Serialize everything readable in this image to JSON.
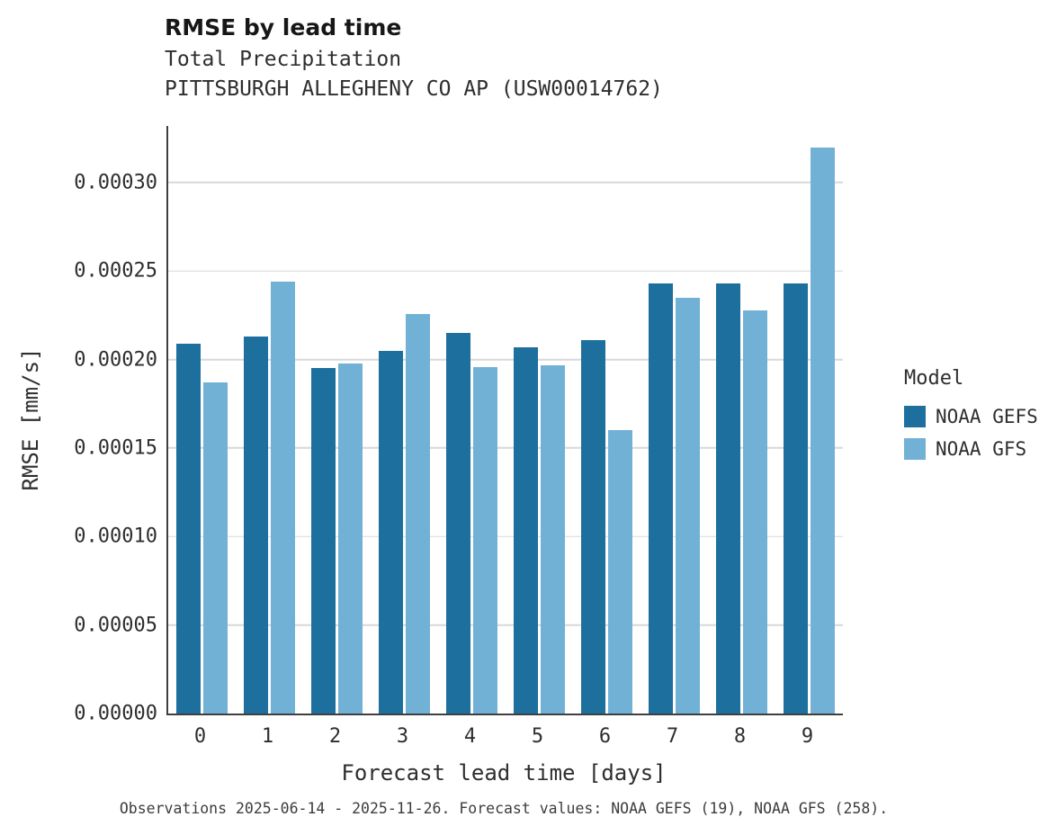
{
  "chart_data": {
    "type": "bar",
    "title": "RMSE by lead time",
    "subtitle": "Total Precipitation",
    "subtitle2": "PITTSBURGH ALLEGHENY CO AP (USW00014762)",
    "xlabel": "Forecast lead time [days]",
    "ylabel": "RMSE [mm/s]",
    "categories": [
      "0",
      "1",
      "2",
      "3",
      "4",
      "5",
      "6",
      "7",
      "8",
      "9"
    ],
    "series": [
      {
        "name": "NOAA GEFS",
        "color": "#1d6f9e",
        "values": [
          0.000209,
          0.000213,
          0.000195,
          0.000205,
          0.000215,
          0.000207,
          0.000211,
          0.000243,
          0.000243,
          0.000243
        ]
      },
      {
        "name": "NOAA GFS",
        "color": "#72b1d6",
        "values": [
          0.000187,
          0.000244,
          0.000198,
          0.000226,
          0.000196,
          0.000197,
          0.00016,
          0.000235,
          0.000228,
          0.00032
        ]
      }
    ],
    "ylim": [
      0,
      0.000332
    ],
    "yticks": [
      {
        "value": 0.0,
        "label": "0.00000"
      },
      {
        "value": 5e-05,
        "label": "0.00005"
      },
      {
        "value": 0.0001,
        "label": "0.00010"
      },
      {
        "value": 0.00015,
        "label": "0.00015"
      },
      {
        "value": 0.0002,
        "label": "0.00020"
      },
      {
        "value": 0.00025,
        "label": "0.00025"
      },
      {
        "value": 0.0003,
        "label": "0.00030"
      }
    ],
    "grid": "horizontal",
    "legend_position": "right",
    "legend_title": "Model",
    "caption": "Observations 2025-06-14 - 2025-11-26. Forecast values: NOAA GEFS (19), NOAA GFS (258)."
  }
}
